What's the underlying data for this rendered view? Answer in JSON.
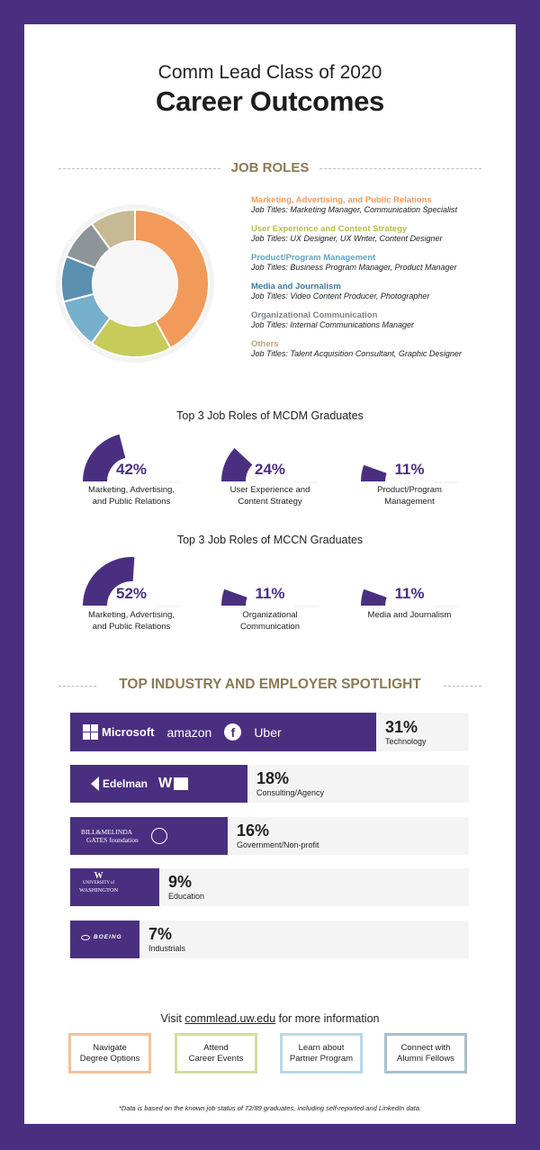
{
  "header": {
    "subtitle": "Comm Lead Class of 2020",
    "title": "Career Outcomes"
  },
  "job_roles": {
    "section_title": "JOB ROLES",
    "categories": [
      {
        "name": "Marketing, Advertising, and Public Relations",
        "jobs": "Job Titles: Marketing Manager, Communication Specialist",
        "color": "#f29a5a"
      },
      {
        "name": "User Experience and Content Strategy",
        "jobs": "Job Titles: UX Designer, UX Writer, Content Designer",
        "color": "#b6bd4a"
      },
      {
        "name": "Product/Program Management",
        "jobs": "Job Titles: Business Program Manager, Product Manager",
        "color": "#5fa3c4"
      },
      {
        "name": "Media and Journalism",
        "jobs": "Job Titles: Video Content Producer, Photographer",
        "color": "#3e7aa0"
      },
      {
        "name": "Organizational Communication",
        "jobs": "Job Titles: Internal Communications Manager",
        "color": "#7a8186"
      },
      {
        "name": "Others",
        "jobs": "Job Titles: Talent Acquisition Consultant, Graphic Designer",
        "color": "#b9a77e"
      }
    ]
  },
  "chart_data": [
    {
      "type": "pie",
      "categories": [
        "Marketing, Advertising, and Public Relations",
        "User Experience and Content Strategy",
        "Product/Program Management",
        "Media and Journalism",
        "Organizational Communication",
        "Others"
      ],
      "values": [
        42,
        18,
        11,
        10,
        9,
        10
      ],
      "colors": [
        "#f29a5a",
        "#c6cb5a",
        "#76b0cc",
        "#5b8fb0",
        "#8e9598",
        "#c8b995"
      ]
    },
    {
      "type": "bar",
      "title": "Top 3 Job Roles of MCDM Graduates",
      "categories": [
        "Marketing, Advertising, and Public Relations",
        "User Experience and Content Strategy",
        "Product/Program Management"
      ],
      "values": [
        42,
        24,
        11
      ],
      "labels": [
        "42%",
        "24%",
        "11%"
      ]
    },
    {
      "type": "bar",
      "title": "Top 3 Job Roles of MCCN Graduates",
      "categories": [
        "Marketing, Advertising, and Public Relations",
        "Organizational Communication",
        "Media and Journalism"
      ],
      "values": [
        52,
        11,
        11
      ],
      "labels": [
        "52%",
        "11%",
        "11%"
      ]
    },
    {
      "type": "bar",
      "title": "TOP INDUSTRY AND EMPLOYER SPOTLIGHT",
      "categories": [
        "Technology",
        "Consulting/Agency",
        "Government/Non-profit",
        "Education",
        "Industrials"
      ],
      "values": [
        31,
        18,
        16,
        9,
        7
      ],
      "labels": [
        "31%",
        "18%",
        "16%",
        "9%",
        "7%"
      ]
    }
  ],
  "mcdm": {
    "title": "Top 3 Job Roles of MCDM Graduates",
    "gauges": [
      {
        "value": 42,
        "pct": "42%",
        "line1": "Marketing, Advertising,",
        "line2": "and Public Relations"
      },
      {
        "value": 24,
        "pct": "24%",
        "line1": "User Experience and",
        "line2": "Content Strategy"
      },
      {
        "value": 11,
        "pct": "11%",
        "line1": "Product/Program",
        "line2": "Management"
      }
    ]
  },
  "mccn": {
    "title": "Top 3 Job Roles of MCCN Graduates",
    "gauges": [
      {
        "value": 52,
        "pct": "52%",
        "line1": "Marketing, Advertising,",
        "line2": "and Public Relations"
      },
      {
        "value": 11,
        "pct": "11%",
        "line1": "Organizational",
        "line2": "Communication"
      },
      {
        "value": 11,
        "pct": "11%",
        "line1": "Media and Journalism",
        "line2": ""
      }
    ]
  },
  "industry": {
    "section_title": "TOP INDUSTRY AND EMPLOYER SPOTLIGHT",
    "rows": [
      {
        "value": 31,
        "pct": "31%",
        "name": "Technology",
        "logos": [
          "Microsoft",
          "amazon",
          "Uber"
        ]
      },
      {
        "value": 18,
        "pct": "18%",
        "name": "Consulting/Agency",
        "logos": [
          "Edelman",
          "W"
        ]
      },
      {
        "value": 16,
        "pct": "16%",
        "name": "Government/Non-profit",
        "logos": [
          "BILL&MELINDA",
          "GATES foundation"
        ]
      },
      {
        "value": 9,
        "pct": "9%",
        "name": "Education",
        "logos": [
          "W",
          "UNIVERSITY of",
          "WASHINGTON"
        ]
      },
      {
        "value": 7,
        "pct": "7%",
        "name": "Industrials",
        "logos": [
          "BOEING"
        ]
      }
    ]
  },
  "footer": {
    "visit_prefix": "Visit ",
    "visit_link": "commlead.uw.edu",
    "visit_suffix": " for more information",
    "buttons": [
      {
        "line1": "Navigate",
        "line2": "Degree Options",
        "color": "#f3c29b"
      },
      {
        "line1": "Attend",
        "line2": "Career Events",
        "color": "#d6dc9f"
      },
      {
        "line1": "Learn about",
        "line2": "Partner Program",
        "color": "#b9d9e6"
      },
      {
        "line1": "Connect with",
        "line2": "Alumni Fellows",
        "color": "#a8bfcd"
      }
    ],
    "footnote": "*Data is based on the known job status of 72/89 graduates, including self-reported and LinkedIn data."
  },
  "colors": {
    "purple": "#4a2f80",
    "gold": "#8b7a52",
    "track": "#f4f4f4"
  }
}
